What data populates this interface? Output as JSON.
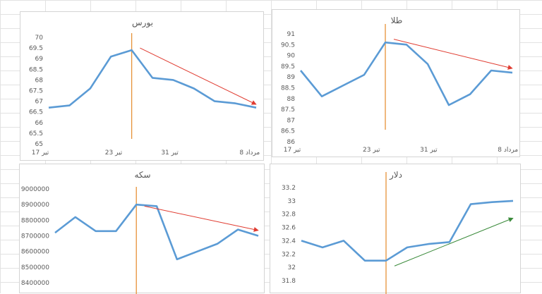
{
  "colors": {
    "series": "#5b9bd5",
    "marker_line": "#e69138",
    "trend_down": "#e03c31",
    "trend_up": "#3a8a3a",
    "axis_text": "#595959"
  },
  "chart_data": [
    {
      "type": "line",
      "title": "بورس",
      "x_ticks": [
        "17 تیر",
        "23 تیر",
        "31 تیر",
        "8 مرداد"
      ],
      "y_ticks": [
        "65",
        "65.5",
        "66",
        "66.5",
        "67",
        "67.5",
        "68",
        "68.5",
        "69",
        "69.5",
        "70"
      ],
      "ylim": [
        65,
        70
      ],
      "grid": false,
      "series": [
        {
          "values": [
            66.7,
            66.8,
            67.6,
            69.1,
            69.4,
            68.1,
            68.0,
            67.6,
            67.0,
            66.9,
            66.7
          ]
        }
      ],
      "marker_line_index": 4,
      "trend_arrow": {
        "direction": "down",
        "from": [
          4.4,
          69.5
        ],
        "to": [
          10.0,
          66.85
        ]
      }
    },
    {
      "type": "line",
      "title": "طلا",
      "x_ticks": [
        "17 تیر",
        "23 تیر",
        "31 تیر",
        "8 مرداد"
      ],
      "y_ticks": [
        "86",
        "86.5",
        "87",
        "87.5",
        "88",
        "88.5",
        "89",
        "89.5",
        "90",
        "90.5",
        "91"
      ],
      "ylim": [
        86,
        91
      ],
      "grid": false,
      "series": [
        {
          "values": [
            89.3,
            88.1,
            88.6,
            89.1,
            90.6,
            90.5,
            89.6,
            87.7,
            88.2,
            89.3,
            89.2
          ]
        }
      ],
      "marker_line_index": 4,
      "trend_arrow": {
        "direction": "down",
        "from": [
          4.4,
          90.75
        ],
        "to": [
          10.0,
          89.4
        ]
      }
    },
    {
      "type": "line",
      "title": "سکه",
      "x_ticks": [],
      "y_ticks": [
        "8400000",
        "8500000",
        "8600000",
        "8700000",
        "8800000",
        "8900000",
        "9000000"
      ],
      "ylim": [
        8400000,
        9000000
      ],
      "grid": false,
      "series": [
        {
          "values": [
            8720000,
            8820000,
            8730000,
            8730000,
            8900000,
            8890000,
            8550000,
            8600000,
            8650000,
            8740000,
            8700000
          ]
        }
      ],
      "marker_line_index": 4,
      "trend_arrow": {
        "direction": "down",
        "from": [
          4.4,
          8890000
        ],
        "to": [
          10.0,
          8735000
        ]
      }
    },
    {
      "type": "line",
      "title": "دلار",
      "x_ticks": [],
      "y_ticks": [
        "31.8",
        "32",
        "32.2",
        "32.4",
        "32.6",
        "32.8",
        "33",
        "33.2"
      ],
      "ylim": [
        31.8,
        33.2
      ],
      "grid": false,
      "series": [
        {
          "values": [
            32.4,
            32.3,
            32.4,
            32.1,
            32.1,
            32.3,
            32.35,
            32.38,
            32.95,
            32.98,
            33.0
          ]
        }
      ],
      "marker_line_index": 4,
      "trend_arrow": {
        "direction": "up",
        "from": [
          4.4,
          32.02
        ],
        "to": [
          10.0,
          32.74
        ]
      }
    }
  ]
}
